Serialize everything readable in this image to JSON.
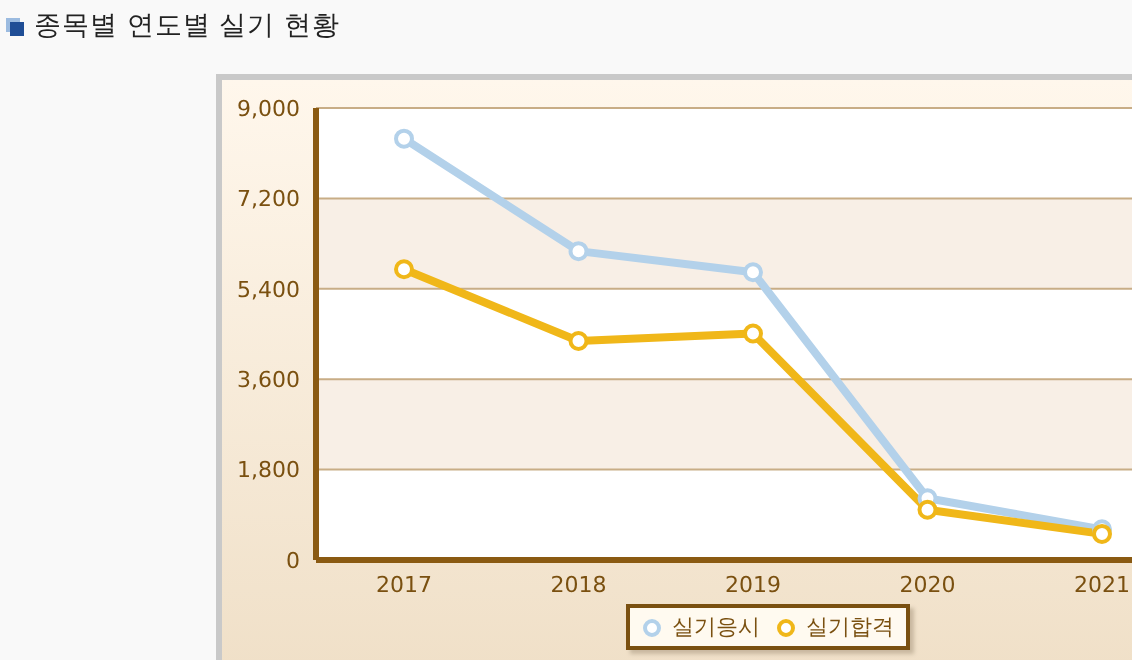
{
  "chart_data": {
    "type": "line",
    "title": "종목별 연도별 실기 현황",
    "categories": [
      "2017",
      "2018",
      "2019",
      "2020",
      "2021"
    ],
    "series": [
      {
        "name": "실기응시",
        "color": "#b3d1ea",
        "values": [
          8390,
          6150,
          5730,
          1230,
          610
        ]
      },
      {
        "name": "실기합격",
        "color": "#f0b719",
        "values": [
          5790,
          4360,
          4510,
          1000,
          520
        ]
      }
    ],
    "ylim": [
      0,
      9000
    ],
    "yticks": [
      0,
      {
        "value": 1800,
        "label": "1,800"
      },
      {
        "value": 3600,
        "label": "3,600"
      },
      {
        "value": 5400,
        "label": "5,400"
      },
      {
        "value": 7200,
        "label": "7,200"
      },
      {
        "value": 9000,
        "label": "9,000"
      }
    ],
    "grid": "y",
    "legend": "bottom",
    "marker": "circle"
  }
}
